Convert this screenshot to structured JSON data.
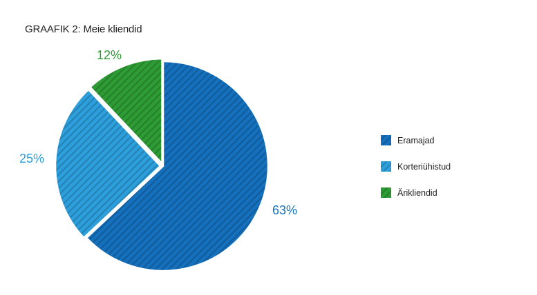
{
  "title": "GRAAFIK 2: Meie kliendid",
  "chart_data": {
    "type": "pie",
    "slices": [
      {
        "label": "Eramajad",
        "value": 63,
        "display": "63%",
        "color": "#1570bd",
        "explode": false
      },
      {
        "label": "Korteriühistud",
        "value": 25,
        "display": "25%",
        "color": "#2d9fdc",
        "explode": true
      },
      {
        "label": "Ärikliendid",
        "value": 12,
        "display": "12%",
        "color": "#2e9c35",
        "explode": true
      }
    ],
    "start_angle": "12 o'clock, clockwise",
    "fill_pattern": "diagonal hatch",
    "legend_position": "right"
  }
}
